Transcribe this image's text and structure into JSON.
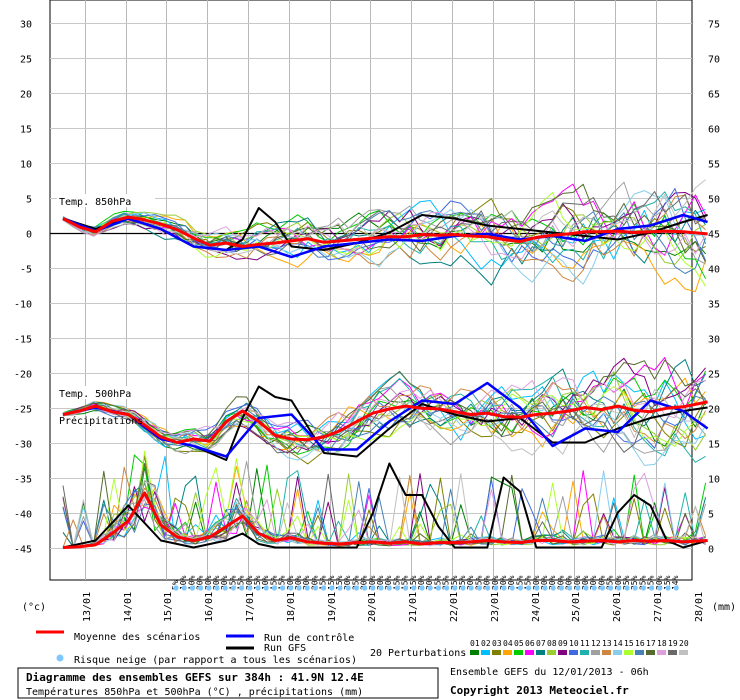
{
  "chart_data": {
    "type": "line",
    "title": "Diagramme des ensembles GEFS sur 384h : 41.9N 12.4E",
    "subtitle": "Températures 850hPa et 500hPa (°C) , précipitations (mm)",
    "run_info": "Ensemble GEFS du 12/01/2013 - 06h",
    "copyright": "Copyright 2013 Meteociel.fr",
    "left_axis": {
      "unit": "(°c)",
      "ticks": [
        30,
        25,
        20,
        15,
        10,
        5,
        0,
        -5,
        -10,
        -15,
        -20,
        -25,
        -30,
        -35,
        -40,
        -45
      ],
      "range": [
        -45,
        30
      ]
    },
    "right_axis": {
      "unit": "(mm)",
      "ticks": [
        75,
        70,
        65,
        60,
        55,
        50,
        45,
        40,
        35,
        30,
        25,
        20,
        15,
        10,
        5,
        0
      ],
      "range": [
        0,
        75
      ]
    },
    "x_labels": [
      "13/01",
      "14/01",
      "15/01",
      "16/01",
      "17/01",
      "18/01",
      "19/01",
      "20/01",
      "21/01",
      "22/01",
      "23/01",
      "24/01",
      "25/01",
      "26/01",
      "27/01",
      "28/01"
    ],
    "x_range_days": [
      0,
      15.8
    ],
    "panel_labels": {
      "t850": "Temp. 850hPa",
      "t500": "Temp. 500hPa",
      "precip": "Précipitations"
    },
    "snow_risk_pct": [
      "5%",
      "10%",
      "10%",
      "20%",
      "20%",
      "20%",
      "20%",
      "15%",
      "15%",
      "20%",
      "15%",
      "10%",
      "15%",
      "15%",
      "20%",
      "20%",
      "20%",
      "20%",
      "15%",
      "15%",
      "15%",
      "20%",
      "25%",
      "20%",
      "20%",
      "20%",
      "20%",
      "15%",
      "15%",
      "15%",
      "20%",
      "20%",
      "15%",
      "25%",
      "25%",
      "25%",
      "20%",
      "25%",
      "20%",
      "20%",
      "20%",
      "20%",
      "15%",
      "15%",
      "20%",
      "20%",
      "20%",
      "20%",
      "20%",
      "20%",
      "20%",
      "20%",
      "20%",
      "25%",
      "20%",
      "25%",
      "25%",
      "25%",
      "15%",
      "20%",
      "15%",
      "14%"
    ],
    "series": [
      {
        "name": "Moyenne des scénarios",
        "panel": "t850",
        "x": [
          0,
          0.4,
          0.8,
          1.2,
          1.6,
          2.0,
          2.4,
          2.8,
          3.2,
          3.6,
          4.0,
          4.4,
          4.8,
          5.2,
          5.6,
          6.0,
          6.4,
          6.8,
          7.2,
          7.6,
          8.0,
          8.4,
          8.8,
          9.2,
          9.6,
          10.0,
          10.4,
          10.8,
          11.2,
          11.6,
          12.0,
          12.4,
          12.8,
          13.2,
          13.6,
          14.0,
          14.4,
          14.8,
          15.2,
          15.8
        ],
        "values": [
          2,
          0.8,
          0.1,
          1.6,
          2.2,
          1.8,
          1.2,
          0.4,
          -0.8,
          -1.8,
          -1.5,
          -2.0,
          -1.7,
          -1.5,
          -1.2,
          -0.9,
          -1.4,
          -1.2,
          -1.0,
          -0.8,
          -0.6,
          -0.6,
          -0.3,
          -0.4,
          -0.3,
          -0.5,
          -0.6,
          -1.0,
          -1.3,
          -0.7,
          -0.4,
          -0.2,
          0.1,
          0.1,
          0.2,
          0.0,
          0.1,
          0.2,
          0.1,
          -0.2
        ]
      },
      {
        "name": "Moyenne des scénarios",
        "panel": "t500",
        "x": [
          0,
          0.4,
          0.8,
          1.2,
          1.6,
          2.0,
          2.4,
          2.8,
          3.2,
          3.6,
          4.0,
          4.4,
          4.8,
          5.2,
          5.6,
          6.0,
          6.4,
          6.8,
          7.2,
          7.6,
          8.0,
          8.4,
          8.8,
          9.2,
          9.6,
          10.0,
          10.4,
          10.8,
          11.2,
          11.6,
          12.0,
          12.4,
          12.8,
          13.2,
          13.6,
          14.0,
          14.4,
          14.8,
          15.2,
          15.8
        ],
        "values": [
          -26,
          -25.5,
          -24.8,
          -25.6,
          -26.0,
          -27.5,
          -29.2,
          -30.0,
          -29.5,
          -29.8,
          -27.0,
          -25.5,
          -27.0,
          -29.0,
          -29.5,
          -29.6,
          -29.2,
          -28.3,
          -27.0,
          -25.8,
          -25.2,
          -24.8,
          -25.1,
          -25.2,
          -25.6,
          -26.0,
          -25.8,
          -26.3,
          -26.4,
          -26.0,
          -25.8,
          -25.5,
          -25.0,
          -25.3,
          -24.8,
          -25.4,
          -25.6,
          -25.1,
          -24.9,
          -24.2
        ]
      },
      {
        "name": "Moyenne des scénarios",
        "panel": "precip",
        "x": [
          0,
          0.4,
          0.8,
          1.2,
          1.6,
          2.0,
          2.4,
          2.8,
          3.2,
          3.6,
          4.0,
          4.4,
          4.8,
          5.2,
          5.6,
          6.0,
          6.4,
          6.8,
          7.2,
          7.6,
          8.0,
          8.4,
          8.8,
          9.2,
          9.6,
          10.0,
          10.4,
          10.8,
          11.2,
          11.6,
          12.0,
          12.4,
          12.8,
          13.2,
          13.6,
          14.0,
          14.4,
          14.8,
          15.2,
          15.8
        ],
        "values": [
          -45,
          -44.9,
          -44.6,
          -43.0,
          -41.2,
          -37.2,
          -41.8,
          -43.5,
          -44.0,
          -43.5,
          -42.0,
          -40.5,
          -43.0,
          -44.0,
          -43.6,
          -44.2,
          -44.4,
          -44.5,
          -44.3,
          -44.2,
          -44.4,
          -44.2,
          -44.5,
          -44.3,
          -44.3,
          -44.2,
          -44.0,
          -44.2,
          -44.3,
          -44.0,
          -44.0,
          -44.2,
          -44.1,
          -44.0,
          -44.2,
          -44.0,
          -44.1,
          -44.0,
          -44.2,
          -44.0
        ]
      },
      {
        "name": "Run de contrôle",
        "panel": "t850",
        "x": [
          0,
          0.8,
          1.6,
          2.4,
          3.2,
          4.0,
          4.8,
          5.6,
          6.4,
          7.2,
          8.0,
          8.8,
          9.6,
          10.4,
          11.2,
          12.0,
          12.8,
          13.6,
          14.4,
          15.2,
          15.8
        ],
        "values": [
          2,
          0.2,
          2.0,
          0.5,
          -2.0,
          -2.5,
          -2.0,
          -3.5,
          -2.0,
          -1.5,
          -1.0,
          -1.2,
          -0.5,
          -0.2,
          -1.0,
          -0.5,
          -1.2,
          0.5,
          1.0,
          2.5,
          1.5
        ]
      },
      {
        "name": "Run de contrôle",
        "panel": "t500",
        "x": [
          0,
          0.8,
          1.6,
          2.4,
          3.2,
          4.0,
          4.8,
          5.6,
          6.4,
          7.2,
          8.0,
          8.8,
          9.6,
          10.4,
          11.2,
          12.0,
          12.8,
          13.6,
          14.4,
          15.2,
          15.8
        ],
        "values": [
          -26,
          -25,
          -26,
          -29.5,
          -30.5,
          -32.0,
          -26.5,
          -26.0,
          -31.0,
          -31.0,
          -27.0,
          -24.0,
          -24.5,
          -21.5,
          -25.0,
          -30.5,
          -28.0,
          -28.5,
          -24.0,
          -25.5,
          -28.0
        ]
      },
      {
        "name": "Run GFS",
        "panel": "t850",
        "x": [
          0,
          0.8,
          1.6,
          2.4,
          3.2,
          4.0,
          4.4,
          4.8,
          5.2,
          5.6,
          6.4,
          7.2,
          8.0,
          8.8,
          9.6,
          10.4,
          11.2,
          12.0,
          12.8,
          13.6,
          14.4,
          15.2,
          15.8
        ],
        "values": [
          2,
          0.5,
          2.0,
          0.5,
          -2.0,
          -2.5,
          -1.0,
          3.5,
          1.5,
          -2.0,
          -2.5,
          -1.5,
          0.0,
          2.5,
          2.0,
          1.0,
          0.5,
          0.0,
          -0.5,
          -1.0,
          0.0,
          1.5,
          2.5
        ]
      },
      {
        "name": "Run GFS",
        "panel": "t500",
        "x": [
          0,
          0.8,
          1.6,
          2.4,
          3.2,
          4.0,
          4.4,
          4.8,
          5.2,
          5.6,
          6.4,
          7.2,
          8.0,
          8.8,
          9.6,
          10.4,
          11.2,
          12.0,
          12.8,
          13.6,
          14.4,
          15.2,
          15.8
        ],
        "values": [
          -26,
          -25,
          -26,
          -29.5,
          -30.5,
          -32.5,
          -26.5,
          -22.0,
          -23.5,
          -24.0,
          -31.5,
          -32.0,
          -28.0,
          -24.5,
          -26.0,
          -27.0,
          -26.5,
          -30.0,
          -30.0,
          -28.0,
          -26.5,
          -25.5,
          -25.0
        ]
      },
      {
        "name": "Run GFS",
        "panel": "precip",
        "x": [
          0,
          0.8,
          1.6,
          2.4,
          3.2,
          4.0,
          4.4,
          4.8,
          5.2,
          5.6,
          6.4,
          7.2,
          7.6,
          8.0,
          8.4,
          8.8,
          9.2,
          9.6,
          10.0,
          10.4,
          10.8,
          11.2,
          11.6,
          12.0,
          12.4,
          12.8,
          13.2,
          13.6,
          14.0,
          14.4,
          14.8,
          15.2,
          15.8
        ],
        "values": [
          -45,
          -44,
          -39,
          -44,
          -45,
          -44,
          -43,
          -44.5,
          -45,
          -45,
          -45,
          -45,
          -40,
          -33,
          -37.5,
          -37.5,
          -42,
          -45,
          -45,
          -45,
          -35,
          -37,
          -45,
          -45,
          -45,
          -45,
          -45,
          -40,
          -37.5,
          -39,
          -44,
          -45,
          -44
        ]
      }
    ]
  },
  "legend": {
    "mean": "Moyenne des scénarios",
    "control": "Run de contrôle",
    "gfs": "Run GFS",
    "perturbations": "20 Perturbations",
    "snow": "Risque neige (par rapport a tous les scénarios)",
    "colors": {
      "mean": "#ff0000",
      "control": "#0000ff",
      "gfs": "#000000"
    },
    "perturbation_labels": [
      "01",
      "02",
      "03",
      "04",
      "05",
      "06",
      "07",
      "08",
      "09",
      "10",
      "11",
      "12",
      "13",
      "14",
      "15",
      "16",
      "17",
      "18",
      "19",
      "20"
    ],
    "perturbation_colors": [
      "#008000",
      "#00bfff",
      "#808000",
      "#ffa500",
      "#00cc00",
      "#ff00ff",
      "#008080",
      "#9acd32",
      "#800080",
      "#4169e1",
      "#20b2aa",
      "#a0a0a0",
      "#cd853f",
      "#87ceeb",
      "#adff2f",
      "#4682b4",
      "#556b2f",
      "#dda0dd",
      "#696969",
      "#c0c0c0"
    ]
  }
}
